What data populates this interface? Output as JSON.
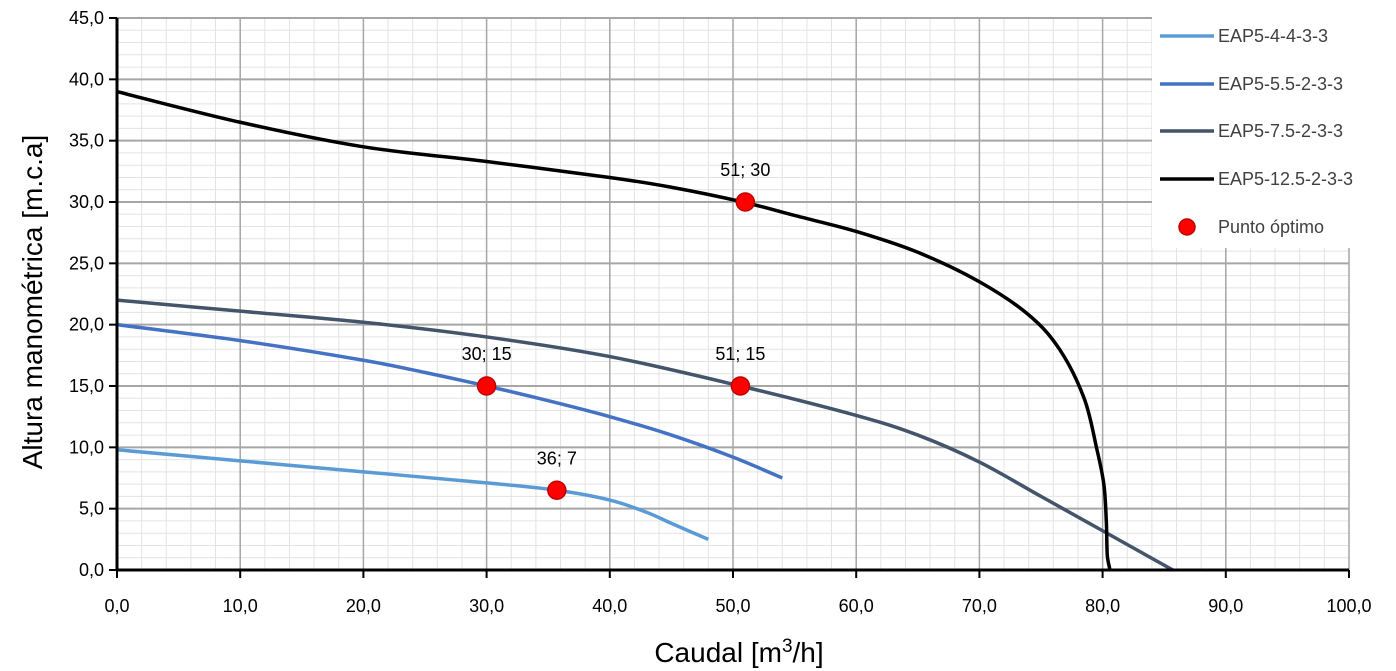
{
  "chart_data": {
    "type": "line",
    "xlabel_main": "Caudal [m",
    "xlabel_sup": "3",
    "xlabel_end": "/h]",
    "ylabel": "Altura manométrica [m.c.a]",
    "xlim": [
      0,
      100
    ],
    "ylim": [
      0,
      45
    ],
    "x_ticks": [
      "0,0",
      "10,0",
      "20,0",
      "30,0",
      "40,0",
      "50,0",
      "60,0",
      "70,0",
      "80,0",
      "90,0",
      "100,0"
    ],
    "y_ticks": [
      "0,0",
      "5,0",
      "10,0",
      "15,0",
      "20,0",
      "25,0",
      "30,0",
      "35,0",
      "40,0",
      "45,0"
    ],
    "grid": true,
    "legend_position": "top-right",
    "series": [
      {
        "name": "EAP5-4-4-3-3",
        "color": "#5b9bd5",
        "x": [
          0,
          10,
          20,
          30,
          35.7,
          40,
          43,
          45,
          48
        ],
        "y": [
          9.8,
          8.9,
          8.0,
          7.1,
          6.5,
          5.7,
          4.7,
          3.8,
          2.5
        ]
      },
      {
        "name": "EAP5-5.5-2-3-3",
        "color": "#4472c4",
        "x": [
          0,
          10,
          20,
          25,
          30,
          35,
          40,
          45,
          50,
          54
        ],
        "y": [
          20.0,
          18.7,
          17.1,
          16.1,
          15.0,
          13.8,
          12.5,
          11.0,
          9.2,
          7.5
        ]
      },
      {
        "name": "EAP5-7.5-2-3-3",
        "color": "#44546a",
        "x": [
          0,
          10,
          20,
          30,
          40,
          50.6,
          60,
          65,
          70,
          75,
          80,
          85.7
        ],
        "y": [
          22.0,
          21.1,
          20.2,
          19.0,
          17.4,
          15.0,
          12.6,
          11.0,
          8.8,
          6.0,
          3.2,
          0
        ]
      },
      {
        "name": "EAP5-12.5-2-3-3",
        "color": "#000000",
        "x": [
          0,
          10,
          20,
          30,
          40,
          45,
          50.8,
          55,
          60,
          65,
          70,
          74,
          76.5,
          78.5,
          79.5,
          80.1,
          80.3,
          80.35,
          80.4,
          80.6
        ],
        "y": [
          39.0,
          36.5,
          34.5,
          33.3,
          32.0,
          31.2,
          30.0,
          28.9,
          27.6,
          25.9,
          23.5,
          20.8,
          18.0,
          14.0,
          10.0,
          7.0,
          4.0,
          2.0,
          1.0,
          0
        ]
      }
    ],
    "points": {
      "name": "Punto óptimo",
      "color": "#ff0000",
      "items": [
        {
          "x": 51,
          "y": 30,
          "label": "51; 30"
        },
        {
          "x": 30,
          "y": 15,
          "label": "30; 15"
        },
        {
          "x": 50.6,
          "y": 15,
          "label": "51; 15"
        },
        {
          "x": 35.7,
          "y": 6.5,
          "label": "36; 7"
        }
      ]
    }
  }
}
